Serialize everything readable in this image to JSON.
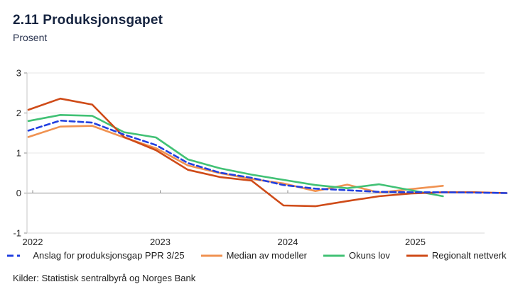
{
  "header": {
    "title": "2.11 Produksjonsgapet",
    "subtitle": "Prosent"
  },
  "footer": {
    "source": "Kilder: Statistisk sentralbyrå og Norges Bank"
  },
  "colors": {
    "title_navy": "#15233f",
    "axis_text": "#222222",
    "grid_light": "#e7e7e7",
    "bottom_axis": "#d9d9d9",
    "left_axis": "#c6c6c6",
    "zero_line": "#8c8c8c",
    "anslag_blue": "#2240e0",
    "median_orange": "#f09251",
    "okun_green": "#41c175",
    "regionalt_red": "#cf4b18"
  },
  "chart_data": {
    "type": "line",
    "title": "2.11 Produksjonsgapet",
    "subtitle": "Prosent",
    "ylabel": "Prosent",
    "xlabel": "",
    "x": [
      2022.0,
      2022.25,
      2022.5,
      2022.75,
      2023.0,
      2023.25,
      2023.5,
      2023.75,
      2024.0,
      2024.25,
      2024.5,
      2024.75,
      2025.0,
      2025.25,
      2025.5,
      2025.75
    ],
    "xtick_positions": [
      2022,
      2023,
      2024,
      2025
    ],
    "xtick_labels": [
      "2022",
      "2023",
      "2024",
      "2025"
    ],
    "ytick_values": [
      3,
      2,
      1,
      0,
      -1
    ],
    "ytick_labels": [
      "3",
      "2",
      "1",
      "0",
      "-1"
    ],
    "ylim": [
      -1,
      3
    ],
    "grid": "horizontal gridlines, zero line emphasized",
    "legend_position": "bottom",
    "series": [
      {
        "name": "Anslag for produksjonsgap PPR 3/25",
        "style": "dashed",
        "color": "#2240e0",
        "values": [
          1.56,
          1.81,
          1.76,
          1.46,
          1.2,
          0.75,
          0.51,
          0.38,
          0.2,
          0.11,
          0.07,
          0.03,
          0.02,
          0.02,
          0.01,
          0.0
        ]
      },
      {
        "name": "Median av modeller",
        "style": "solid",
        "color": "#f09251",
        "values": [
          1.4,
          1.66,
          1.68,
          1.39,
          1.12,
          0.69,
          0.5,
          0.35,
          0.24,
          0.05,
          0.21,
          0.01,
          0.1,
          0.18
        ]
      },
      {
        "name": "Okuns lov",
        "style": "solid",
        "color": "#41c175",
        "values": [
          1.8,
          1.95,
          1.93,
          1.52,
          1.39,
          0.84,
          0.62,
          0.46,
          0.33,
          0.2,
          0.12,
          0.22,
          0.07,
          -0.08
        ]
      },
      {
        "name": "Regionalt nettverk",
        "style": "solid",
        "color": "#cf4b18",
        "values": [
          2.08,
          2.36,
          2.21,
          1.4,
          1.07,
          0.58,
          0.4,
          0.31,
          -0.31,
          -0.33,
          -0.2,
          -0.08,
          -0.01,
          0.02,
          0.02,
          0.0
        ]
      }
    ]
  }
}
